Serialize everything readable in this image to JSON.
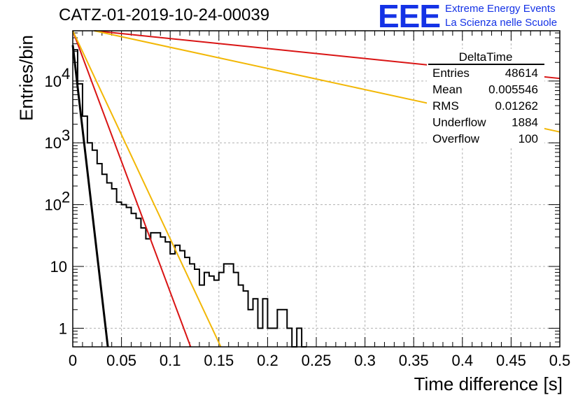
{
  "title": "CATZ-01-2019-10-24-00039",
  "logo": {
    "mark": "EEE",
    "line1": "Extreme Energy Events",
    "line2": "La Scienza nelle Scuole",
    "color": "#1432e6"
  },
  "stats": {
    "name": "DeltaTime",
    "rows": [
      {
        "label": "Entries",
        "value": "48614"
      },
      {
        "label": "Mean",
        "value": "0.005546"
      },
      {
        "label": "RMS",
        "value": "0.01262"
      },
      {
        "label": "Underflow",
        "value": "1884"
      },
      {
        "label": "Overflow",
        "value": "100"
      }
    ]
  },
  "chart_data": {
    "type": "histogram",
    "xlabel": "Time difference [s]",
    "ylabel": "Entries/bin",
    "xlim": [
      0,
      0.5
    ],
    "ylim": [
      0.5,
      65000
    ],
    "yscale": "log",
    "grid": true,
    "xticks": [
      "0",
      "0.05",
      "0.1",
      "0.15",
      "0.2",
      "0.25",
      "0.3",
      "0.35",
      "0.4",
      "0.45",
      "0.5"
    ],
    "yticks": [
      {
        "value": 1,
        "label": "1"
      },
      {
        "value": 10,
        "label": "10"
      },
      {
        "value": 100,
        "label": "10",
        "exp": "2"
      },
      {
        "value": 1000,
        "label": "10",
        "exp": "3"
      },
      {
        "value": 10000,
        "label": "10",
        "exp": "4"
      }
    ],
    "bin_width": 0.005,
    "bins": [
      {
        "x": 0.0,
        "y": 32000
      },
      {
        "x": 0.005,
        "y": 9000
      },
      {
        "x": 0.01,
        "y": 2700
      },
      {
        "x": 0.015,
        "y": 1000
      },
      {
        "x": 0.02,
        "y": 760
      },
      {
        "x": 0.025,
        "y": 460
      },
      {
        "x": 0.03,
        "y": 310
      },
      {
        "x": 0.035,
        "y": 225
      },
      {
        "x": 0.04,
        "y": 180
      },
      {
        "x": 0.045,
        "y": 110
      },
      {
        "x": 0.05,
        "y": 100
      },
      {
        "x": 0.055,
        "y": 90
      },
      {
        "x": 0.06,
        "y": 72
      },
      {
        "x": 0.065,
        "y": 60
      },
      {
        "x": 0.07,
        "y": 42
      },
      {
        "x": 0.075,
        "y": 28
      },
      {
        "x": 0.08,
        "y": 35
      },
      {
        "x": 0.085,
        "y": 35
      },
      {
        "x": 0.09,
        "y": 30
      },
      {
        "x": 0.095,
        "y": 25
      },
      {
        "x": 0.1,
        "y": 16
      },
      {
        "x": 0.105,
        "y": 22
      },
      {
        "x": 0.11,
        "y": 18
      },
      {
        "x": 0.115,
        "y": 14
      },
      {
        "x": 0.12,
        "y": 11
      },
      {
        "x": 0.125,
        "y": 9
      },
      {
        "x": 0.13,
        "y": 5
      },
      {
        "x": 0.135,
        "y": 8
      },
      {
        "x": 0.14,
        "y": 7
      },
      {
        "x": 0.145,
        "y": 6
      },
      {
        "x": 0.15,
        "y": 8
      },
      {
        "x": 0.155,
        "y": 11
      },
      {
        "x": 0.16,
        "y": 11
      },
      {
        "x": 0.165,
        "y": 8
      },
      {
        "x": 0.17,
        "y": 5
      },
      {
        "x": 0.175,
        "y": 4
      },
      {
        "x": 0.18,
        "y": 2
      },
      {
        "x": 0.185,
        "y": 3
      },
      {
        "x": 0.19,
        "y": 1
      },
      {
        "x": 0.195,
        "y": 3
      },
      {
        "x": 0.2,
        "y": 1
      },
      {
        "x": 0.205,
        "y": 1
      },
      {
        "x": 0.21,
        "y": 2
      },
      {
        "x": 0.215,
        "y": 2
      },
      {
        "x": 0.22,
        "y": 1
      },
      {
        "x": 0.225,
        "y": 0
      },
      {
        "x": 0.23,
        "y": 1
      },
      {
        "x": 0.235,
        "y": 0
      }
    ],
    "fits": [
      {
        "color": "#000000",
        "width": 3,
        "points": [
          [
            0,
            38000
          ],
          [
            0.036,
            0.5
          ]
        ]
      },
      {
        "color": "#d91414",
        "width": 2,
        "points": [
          [
            0,
            65000
          ],
          [
            0.121,
            0.5
          ]
        ]
      },
      {
        "color": "#f2b705",
        "width": 2,
        "points": [
          [
            0,
            65000
          ],
          [
            0.152,
            0.5
          ]
        ]
      },
      {
        "color": "#d91414",
        "width": 2,
        "points": [
          [
            0.022,
            65000
          ],
          [
            0.5,
            11000
          ]
        ]
      },
      {
        "color": "#f2b705",
        "width": 2,
        "points": [
          [
            0.022,
            65000
          ],
          [
            0.5,
            1500
          ]
        ]
      }
    ]
  }
}
